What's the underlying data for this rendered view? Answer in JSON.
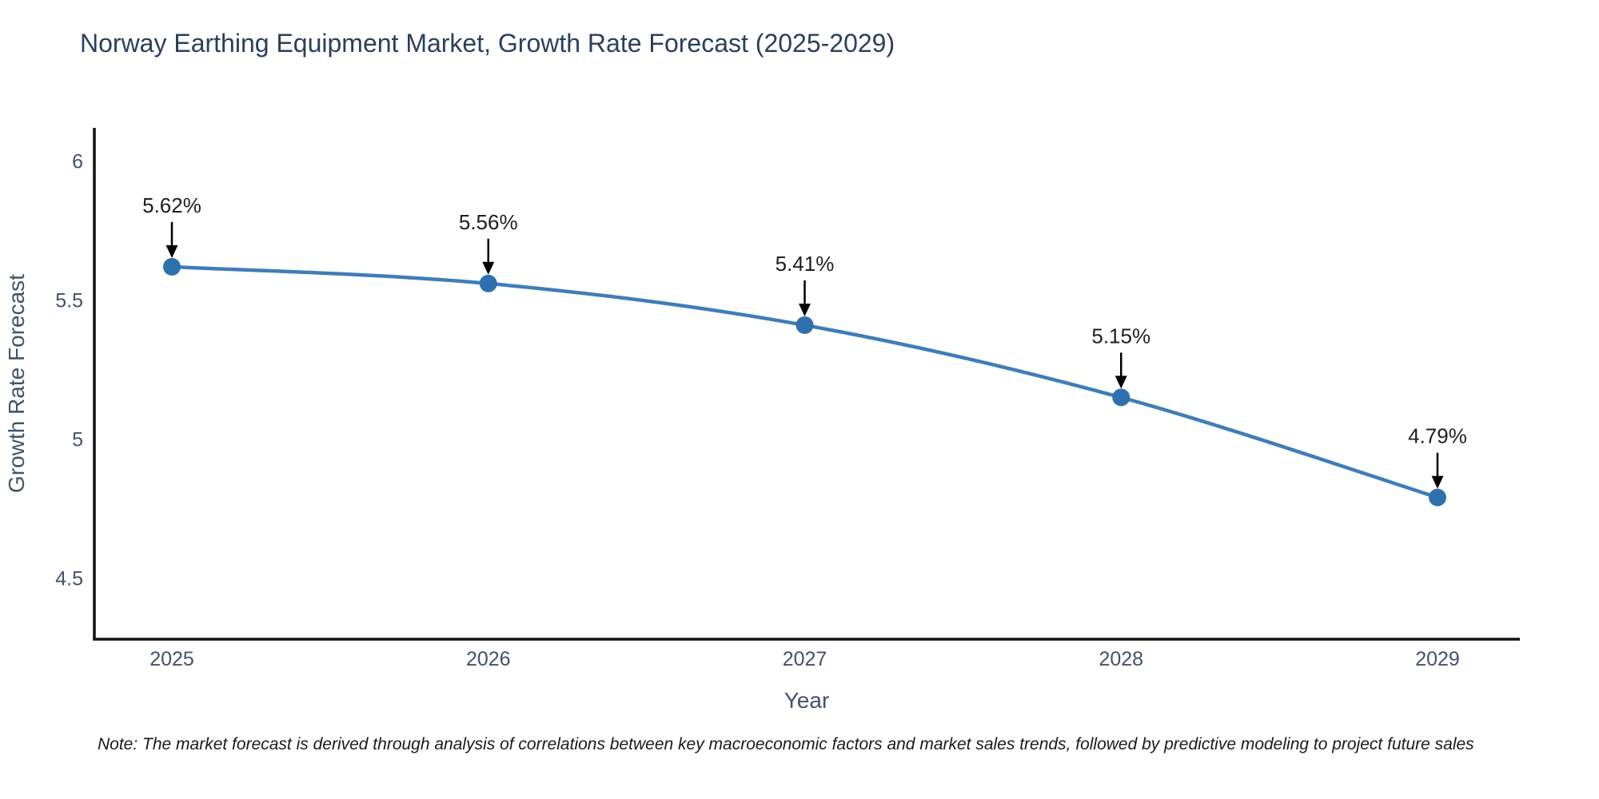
{
  "chart_data": {
    "type": "line",
    "title": "Norway Earthing Equipment Market, Growth Rate Forecast (2025-2029)",
    "x": [
      2025,
      2026,
      2027,
      2028,
      2029
    ],
    "categories": [
      "2025",
      "2026",
      "2027",
      "2028",
      "2029"
    ],
    "series": [
      {
        "name": "Growth Rate Forecast",
        "values": [
          5.62,
          5.56,
          5.41,
          5.15,
          4.79
        ]
      }
    ],
    "point_labels": [
      "5.62%",
      "5.56%",
      "5.41%",
      "5.15%",
      "4.79%"
    ],
    "xlabel": "Year",
    "ylabel": "Growth Rate Forecast",
    "yticks": [
      4.5,
      5,
      5.5,
      6
    ],
    "ytick_labels": [
      "4.5",
      "5",
      "5.5",
      "6"
    ],
    "ylim": [
      4.28,
      6.12
    ],
    "grid": false,
    "legend_position": "none",
    "line_color": "#3f7db8",
    "marker_color": "#2e71ae",
    "axis_color": "#111111",
    "tick_text_color": "#42526b",
    "title_color": "#2a3f5f",
    "annotation_color": "#1f1f1f"
  },
  "footnote": "Note: The market forecast is derived through analysis of correlations between key macroeconomic factors and market sales trends, followed by predictive modeling to project future sales"
}
